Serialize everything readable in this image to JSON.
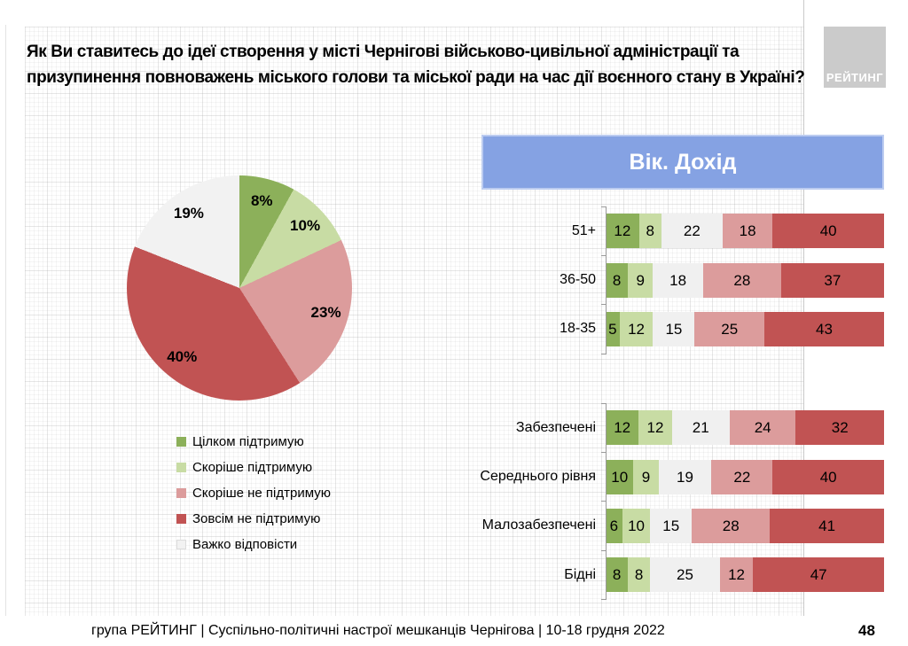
{
  "title": "Як Ви ставитесь до ідеї створення у місті Чернігові військово-цивільної адміністрації та призупинення повноважень міського голови та міської ради на час дії воєнного стану в Україні?",
  "logo": {
    "text": "РЕЙТИНГ"
  },
  "panel_header": {
    "label": "Вік. Дохід",
    "bg_color": "#85A2E3"
  },
  "pie": {
    "slices": [
      {
        "label": "Цілком підтримую",
        "value": 8,
        "display": "8%",
        "color": "#8CB05A"
      },
      {
        "label": "Скоріше підтримую",
        "value": 10,
        "display": "10%",
        "color": "#C8DCA4"
      },
      {
        "label": "Скоріше не підтримую",
        "value": 23,
        "display": "23%",
        "color": "#DC9C9C"
      },
      {
        "label": "Зовсім не підтримую",
        "value": 40,
        "display": "40%",
        "color": "#C15353"
      },
      {
        "label": "Важко відповісти",
        "value": 19,
        "display": "19%",
        "color": "#F2F2F2"
      }
    ]
  },
  "legend": {
    "items": [
      {
        "label": "Цілком підтримую",
        "color": "#8CB05A"
      },
      {
        "label": "Скоріше підтримую",
        "color": "#C8DCA4"
      },
      {
        "label": "Скоріше не підтримую",
        "color": "#DC9C9C"
      },
      {
        "label": "Зовсім не підтримую",
        "color": "#C15353"
      },
      {
        "label": "Важко відповісти",
        "color": "#F2F2F2"
      }
    ]
  },
  "bars": {
    "series": [
      {
        "name": "Цілком підтримую",
        "color": "#8CB05A"
      },
      {
        "name": "Скоріше підтримую",
        "color": "#C8DCA4"
      },
      {
        "name": "Важко відповісти",
        "color": "#F0F0F0"
      },
      {
        "name": "Скоріше не підтримую",
        "color": "#DC9C9C"
      },
      {
        "name": "Зовсім не підтримую",
        "color": "#C15353"
      }
    ],
    "groups": [
      {
        "name": "age",
        "rows": [
          {
            "label": "51+",
            "values": [
              12,
              8,
              22,
              18,
              40
            ]
          },
          {
            "label": "36-50",
            "values": [
              8,
              9,
              18,
              28,
              37
            ]
          },
          {
            "label": "18-35",
            "values": [
              5,
              12,
              15,
              25,
              43
            ]
          }
        ]
      },
      {
        "name": "income",
        "rows": [
          {
            "label": "Забезпечені",
            "values": [
              12,
              12,
              21,
              24,
              32
            ]
          },
          {
            "label": "Середнього рівня",
            "values": [
              10,
              9,
              19,
              22,
              40
            ]
          },
          {
            "label": "Малозабезпечені",
            "values": [
              6,
              10,
              15,
              28,
              41
            ]
          },
          {
            "label": "Бідні",
            "values": [
              8,
              8,
              25,
              12,
              47
            ]
          }
        ]
      }
    ]
  },
  "footer": {
    "source": "група РЕЙТИНГ  | Суспільно-політичні настрої мешканців Чернігова | 10-18 грудня 2022"
  },
  "page": {
    "number": "48"
  },
  "chart_data": [
    {
      "type": "pie",
      "title": "Як Ви ставитесь до ідеї створення у місті Чернігові військово-цивільної адміністрації та призупинення повноважень міського голови та міської ради на час дії воєнного стану в Україні?",
      "labels": [
        "Цілком підтримую",
        "Скоріше підтримую",
        "Скоріше не підтримую",
        "Зовсім не підтримую",
        "Важко відповісти"
      ],
      "values": [
        8,
        10,
        23,
        40,
        19
      ],
      "unit": "%",
      "start_angle": "top",
      "direction": "clockwise",
      "legend_position": "below-left",
      "colors": [
        "#8CB05A",
        "#C8DCA4",
        "#DC9C9C",
        "#C15353",
        "#F2F2F2"
      ]
    },
    {
      "type": "bar",
      "orientation": "horizontal",
      "stacked": true,
      "title": "Вік. Дохід",
      "categories": [
        "51+",
        "36-50",
        "18-35",
        "Забезпечені",
        "Середнього рівня",
        "Малозабезпечені",
        "Бідні"
      ],
      "category_groups": {
        "Вік": [
          "51+",
          "36-50",
          "18-35"
        ],
        "Дохід": [
          "Забезпечені",
          "Середнього рівня",
          "Малозабезпечені",
          "Бідні"
        ]
      },
      "series": [
        {
          "name": "Цілком підтримую",
          "values": [
            12,
            8,
            5,
            12,
            10,
            6,
            8
          ]
        },
        {
          "name": "Скоріше підтримую",
          "values": [
            8,
            9,
            12,
            12,
            9,
            10,
            8
          ]
        },
        {
          "name": "Важко відповісти",
          "values": [
            22,
            18,
            15,
            21,
            19,
            15,
            25
          ]
        },
        {
          "name": "Скоріше не підтримую",
          "values": [
            18,
            28,
            25,
            24,
            22,
            28,
            12
          ]
        },
        {
          "name": "Зовсім не підтримую",
          "values": [
            40,
            37,
            43,
            32,
            40,
            41,
            47
          ]
        }
      ],
      "xlim": [
        0,
        100
      ],
      "unit": "%",
      "data_labels": "inside",
      "grid": false,
      "legend_position": "shared-with-pie"
    }
  ]
}
